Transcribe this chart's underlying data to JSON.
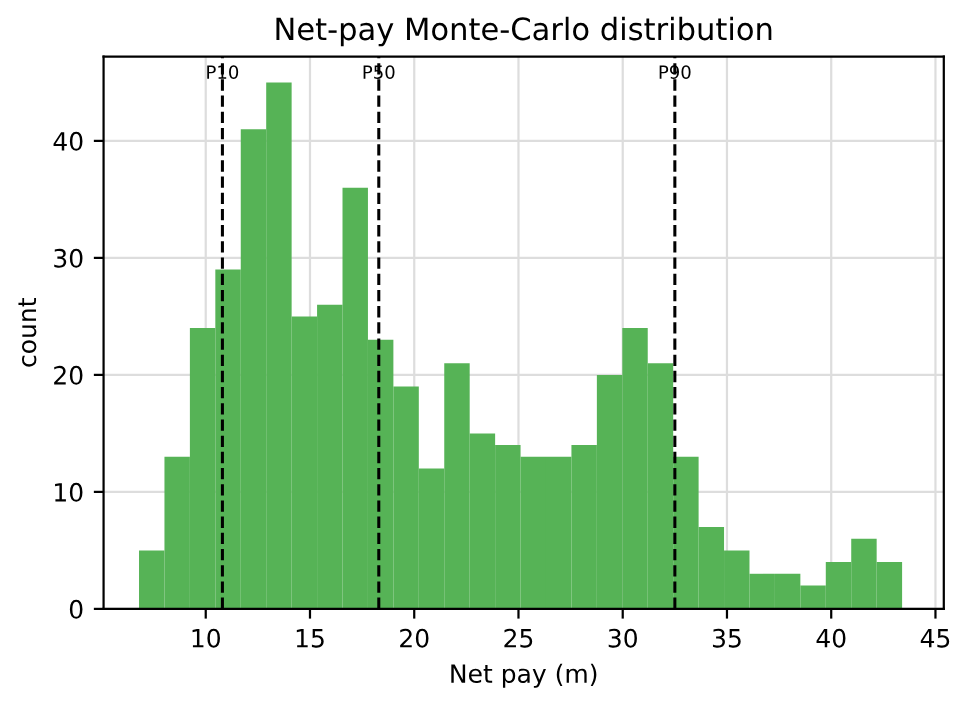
{
  "chart_data": {
    "type": "histogram",
    "title": "Net-pay Monte-Carlo distribution",
    "xlabel": "Net pay (m)",
    "ylabel": "count",
    "bins": [
      6.8,
      8.02,
      9.24,
      10.46,
      11.68,
      12.9,
      14.12,
      15.34,
      16.56,
      17.78,
      19.0,
      20.22,
      21.44,
      22.66,
      23.88,
      25.1,
      26.32,
      27.54,
      28.76,
      29.98,
      31.2,
      32.42,
      33.64,
      34.86,
      36.08,
      37.3,
      38.52,
      39.74,
      40.96,
      42.18,
      43.4
    ],
    "values": [
      5,
      13,
      24,
      29,
      41,
      45,
      25,
      26,
      36,
      23,
      19,
      12,
      21,
      15,
      14,
      13,
      13,
      14,
      20,
      24,
      21,
      13,
      7,
      5,
      3,
      3,
      2,
      4,
      6,
      4
    ],
    "color": "#56b356",
    "xlim": [
      5.1,
      45.4
    ],
    "ylim": [
      0,
      47.2
    ],
    "xticks": [
      10,
      15,
      20,
      25,
      30,
      35,
      40,
      45
    ],
    "yticks": [
      0,
      10,
      20,
      30,
      40
    ],
    "grid": true,
    "ref_lines": [
      {
        "axis": "x",
        "value": 10.8,
        "label": "P10",
        "color": "#000000",
        "line_style": "dashed"
      },
      {
        "axis": "x",
        "value": 18.3,
        "label": "P50",
        "color": "#000000",
        "line_style": "dashed"
      },
      {
        "axis": "x",
        "value": 32.5,
        "label": "P90",
        "color": "#000000",
        "line_style": "dashed"
      }
    ]
  }
}
